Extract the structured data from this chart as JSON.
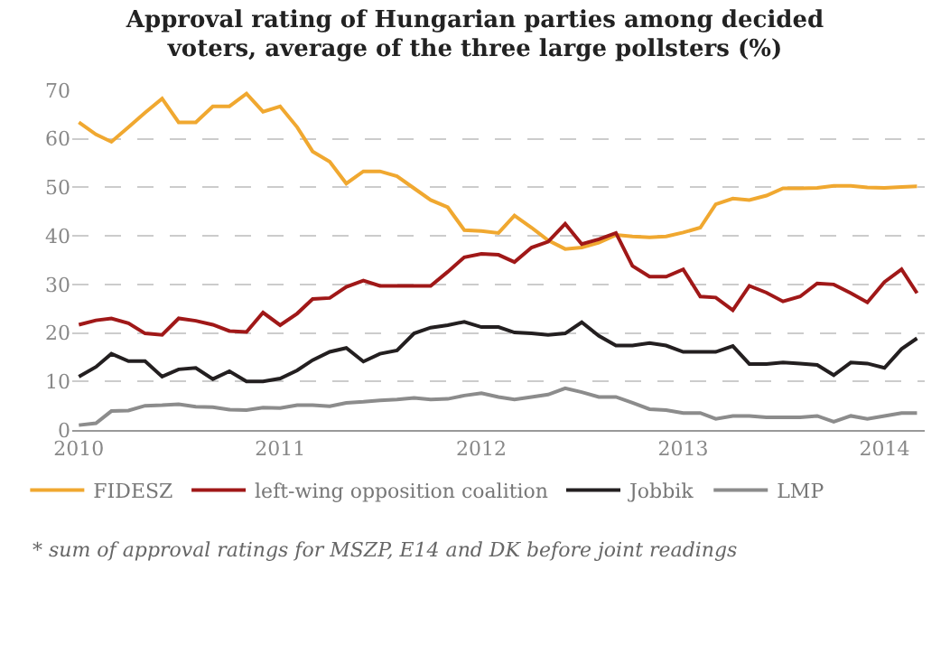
{
  "chart_data": {
    "type": "line",
    "title": "Approval rating of Hungarian parties among decided voters, average of the three large pollsters (%)",
    "x": [
      "2010-01",
      "2010-02",
      "2010-03",
      "2010-04",
      "2010-05",
      "2010-06",
      "2010-07",
      "2010-08",
      "2010-09",
      "2010-10",
      "2010-11",
      "2010-12",
      "2011-01",
      "2011-02",
      "2011-03",
      "2011-04",
      "2011-05",
      "2011-06",
      "2011-07",
      "2011-08",
      "2011-09",
      "2011-10",
      "2011-11",
      "2011-12",
      "2012-01",
      "2012-02",
      "2012-03",
      "2012-04",
      "2012-05",
      "2012-06",
      "2012-07",
      "2012-08",
      "2012-09",
      "2012-10",
      "2012-11",
      "2012-12",
      "2013-01",
      "2013-02",
      "2013-03",
      "2013-04",
      "2013-05",
      "2013-06",
      "2013-07",
      "2013-08",
      "2013-09",
      "2013-10",
      "2013-11",
      "2013-12",
      "2014-01",
      "2014-02",
      "2014-03"
    ],
    "series": [
      {
        "name": "FIDESZ",
        "color": "#f0a830",
        "values": [
          63.4,
          60.9,
          59.4,
          62.4,
          65.4,
          68.3,
          63.4,
          63.4,
          66.7,
          66.7,
          69.3,
          65.6,
          66.7,
          62.4,
          57.4,
          55.3,
          50.8,
          53.3,
          53.3,
          52.3,
          49.8,
          47.4,
          45.9,
          41.2,
          41.0,
          40.6,
          44.2,
          41.7,
          39.1,
          37.3,
          37.6,
          38.6,
          40.2,
          39.9,
          39.7,
          39.9,
          40.7,
          41.7,
          46.5,
          47.7,
          47.4,
          48.3,
          49.8,
          49.8,
          49.9,
          50.3,
          50.3,
          50.0,
          49.9,
          50.1,
          50.2
        ]
      },
      {
        "name": "left-wing opposition coalition",
        "color": "#a01818",
        "values": [
          21.7,
          22.6,
          23.0,
          22.0,
          19.9,
          19.6,
          23.0,
          22.5,
          21.7,
          20.4,
          20.2,
          24.2,
          21.6,
          24.0,
          27.0,
          27.2,
          29.5,
          30.8,
          29.7,
          29.7,
          29.7,
          29.7,
          32.6,
          35.6,
          36.3,
          36.1,
          34.6,
          37.6,
          38.8,
          42.5,
          38.3,
          39.3,
          40.6,
          33.8,
          31.6,
          31.6,
          33.1,
          27.5,
          27.3,
          24.7,
          29.7,
          28.3,
          26.5,
          27.5,
          30.2,
          30.0,
          28.2,
          26.3,
          30.5,
          33.1,
          28.2
        ]
      },
      {
        "name": "Jobbik",
        "color": "#231f20",
        "values": [
          11.0,
          13.0,
          15.7,
          14.2,
          14.2,
          11.0,
          12.5,
          12.8,
          10.5,
          12.1,
          10.0,
          10.0,
          10.6,
          12.3,
          14.4,
          16.1,
          16.9,
          14.1,
          15.7,
          16.4,
          19.9,
          21.1,
          21.6,
          22.3,
          21.2,
          21.2,
          20.1,
          19.9,
          19.6,
          19.9,
          22.2,
          19.4,
          17.4,
          17.4,
          17.9,
          17.4,
          16.1,
          16.1,
          16.1,
          17.3,
          13.6,
          13.6,
          13.9,
          13.7,
          13.4,
          11.3,
          13.9,
          13.7,
          12.8,
          16.7,
          18.9
        ]
      },
      {
        "name": "LMP",
        "color": "#8c8c8c",
        "values": [
          1.0,
          1.4,
          3.9,
          4.0,
          5.0,
          5.1,
          5.3,
          4.8,
          4.7,
          4.2,
          4.1,
          4.6,
          4.5,
          5.1,
          5.1,
          4.9,
          5.6,
          5.8,
          6.1,
          6.3,
          6.6,
          6.3,
          6.4,
          7.1,
          7.6,
          6.8,
          6.3,
          6.8,
          7.3,
          8.6,
          7.8,
          6.8,
          6.8,
          5.6,
          4.3,
          4.1,
          3.5,
          3.5,
          2.3,
          2.9,
          2.9,
          2.6,
          2.6,
          2.6,
          2.9,
          1.7,
          2.9,
          2.3,
          2.9,
          3.5,
          3.5
        ]
      }
    ],
    "xlim": [
      "2009-12-20",
      "2014-03-15"
    ],
    "xticks": [
      {
        "value": "2010-01",
        "label": "2010"
      },
      {
        "value": "2011-01",
        "label": "2011"
      },
      {
        "value": "2012-01",
        "label": "2012"
      },
      {
        "value": "2013-01",
        "label": "2013"
      },
      {
        "value": "2014-01",
        "label": "2014"
      }
    ],
    "ylim": [
      0,
      70
    ],
    "yticks": [
      0,
      10,
      20,
      30,
      40,
      50,
      60,
      70
    ],
    "grid": "y",
    "legend": "bottom",
    "marker": "none",
    "line_style": "solid",
    "annotations": [
      "* sum of approval ratings for MSZP,  E14 and DK before joint readings"
    ]
  }
}
